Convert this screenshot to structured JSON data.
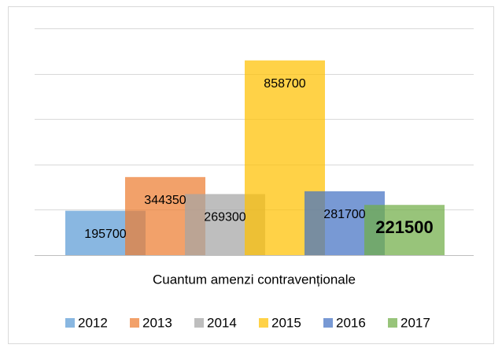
{
  "chart_data": {
    "type": "bar",
    "categories": [
      "Cuantum amenzi contravenționale"
    ],
    "series": [
      {
        "name": "2012",
        "color": "#5b9bd5",
        "values": [
          195700
        ]
      },
      {
        "name": "2013",
        "color": "#ed7d31",
        "values": [
          344350
        ]
      },
      {
        "name": "2014",
        "color": "#a5a5a5",
        "values": [
          269300
        ]
      },
      {
        "name": "2015",
        "color": "#ffc000",
        "values": [
          858700
        ]
      },
      {
        "name": "2016",
        "color": "#4472c4",
        "values": [
          281700
        ]
      },
      {
        "name": "2017",
        "color": "#70ad47",
        "values": [
          221500
        ],
        "label_bold": true
      }
    ],
    "ylim": [
      0,
      1000000
    ],
    "yticks": [
      0,
      200000,
      400000,
      600000,
      800000,
      1000000
    ],
    "grid": true,
    "legend": "bottom"
  }
}
